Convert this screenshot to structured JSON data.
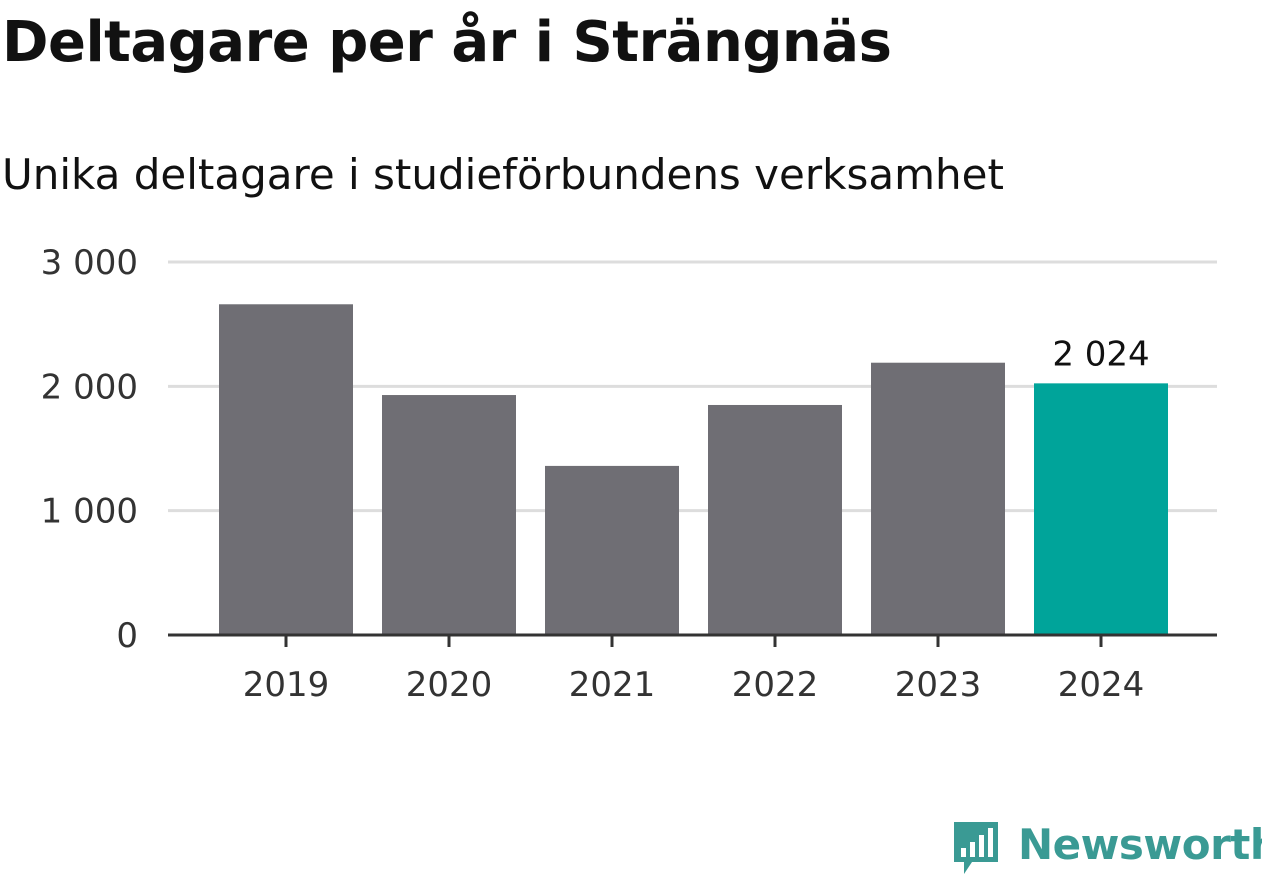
{
  "header": {
    "title": "Deltagare per år i Strängnäs",
    "subtitle": "Unika deltagare i studieförbundens verksamhet"
  },
  "chart_data": {
    "type": "bar",
    "title": "Deltagare per år i Strängnäs",
    "subtitle": "Unika deltagare i studieförbundens verksamhet",
    "categories": [
      "2019",
      "2020",
      "2021",
      "2022",
      "2023",
      "2024"
    ],
    "values": [
      2660,
      1930,
      1360,
      1850,
      2190,
      2024
    ],
    "ylim": [
      0,
      3000
    ],
    "yticks": [
      0,
      1000,
      2000,
      3000
    ],
    "ytick_labels": [
      "0",
      "1 000",
      "2 000",
      "3 000"
    ],
    "xlabel": "",
    "ylabel": "",
    "grid": true,
    "highlight_index": 5,
    "data_labels": [
      {
        "index": 5,
        "text": "2 024"
      }
    ],
    "colors": {
      "bar": "#6f6e74",
      "highlight": "#00a49a",
      "grid": "#dddddd",
      "axis": "#333333",
      "tick_text": "#333333"
    }
  },
  "branding": {
    "logo_text": "Newsworthy",
    "logo_icon": "newsworthy-chart-bubble-icon",
    "logo_color": "#3a9a94"
  }
}
